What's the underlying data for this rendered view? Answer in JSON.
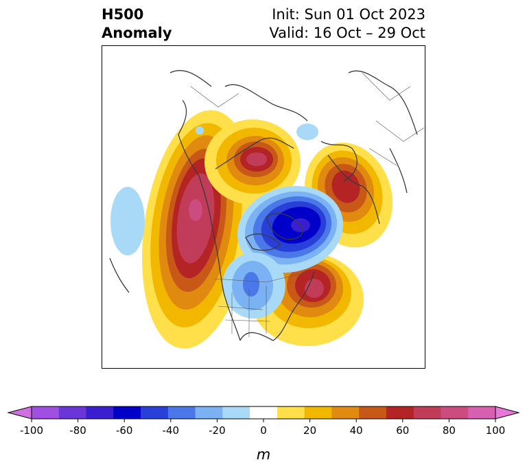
{
  "title": {
    "left_line1": "H500",
    "left_line2": "Anomaly",
    "init": "Init: Sun 01 Oct 2023",
    "valid": "Valid: 16 Oct – 29 Oct"
  },
  "colorbar": {
    "label": "m",
    "ticks": [
      "-100",
      "-80",
      "-60",
      "-40",
      "-20",
      "0",
      "20",
      "40",
      "60",
      "80",
      "100"
    ],
    "colors": [
      "#d070e0",
      "#a050e0",
      "#6a36d8",
      "#3a1ed0",
      "#0000c8",
      "#2840d8",
      "#4a78e8",
      "#7ab2f4",
      "#a8daf8",
      "#ffffff",
      "#ffe04a",
      "#f2b800",
      "#e08a10",
      "#c85818",
      "#b42424",
      "#c03c58",
      "#cc4c80",
      "#d860b0",
      "#e878d8"
    ]
  }
}
